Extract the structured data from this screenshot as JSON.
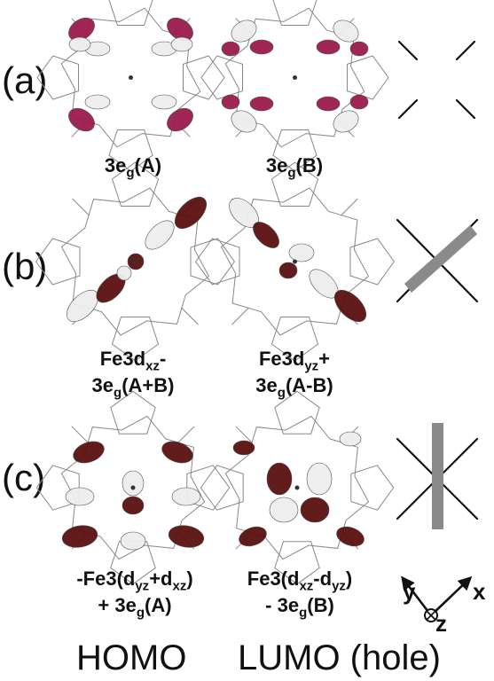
{
  "panels": {
    "a": {
      "label": "(a)",
      "homo_caption": {
        "main": "3e",
        "sub": "g",
        "tail": "(A)"
      },
      "lumo_caption": {
        "main": "3e",
        "sub": "g",
        "tail": "(B)"
      }
    },
    "b": {
      "label": "(b)",
      "homo_caption": {
        "l1_main": "Fe3d",
        "l1_sub": "xz",
        "l1_tail": "-",
        "l2_main": "3e",
        "l2_sub": "g",
        "l2_tail": "(A+B)"
      },
      "lumo_caption": {
        "l1_main": "Fe3d",
        "l1_sub": "yz",
        "l1_tail": "+",
        "l2_main": "3e",
        "l2_sub": "g",
        "l2_tail": "(A-B)"
      }
    },
    "c": {
      "label": "(c)",
      "homo_caption": {
        "l1_a": "-Fe3(d",
        "l1_s1": "yz",
        "l1_b": "+d",
        "l1_s2": "xz",
        "l1_c": ")",
        "l2_a": "+ 3e",
        "l2_s": "g",
        "l2_b": "(A)"
      },
      "lumo_caption": {
        "l1_a": "Fe3(d",
        "l1_s1": "xz",
        "l1_b": "-d",
        "l1_s2": "yz",
        "l1_c": ")",
        "l2_a": "- 3e",
        "l2_s": "g",
        "l2_b": "(B)"
      }
    }
  },
  "axes": {
    "x": "x",
    "y": "y",
    "z": "z"
  },
  "footer": {
    "homo": "HOMO",
    "lumo": "LUMO (hole)"
  },
  "colors": {
    "lobe_magenta": "#9b1b4e",
    "lobe_maroon": "#5a1010",
    "lobe_white": "#eeeeee",
    "bond": "#888888",
    "bar": "#8a8a8a"
  }
}
